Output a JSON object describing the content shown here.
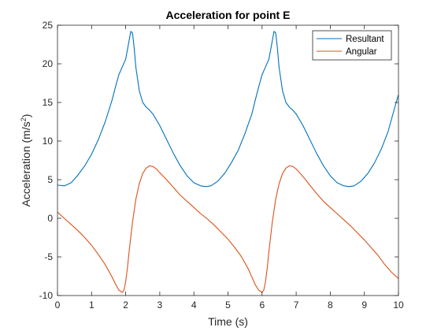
{
  "chart_data": {
    "type": "line",
    "title": "Acceleration for point E",
    "xlabel": "Time (s)",
    "ylabel_base": "Acceleration (m/s",
    "ylabel_sup": "2",
    "ylabel_end": ")",
    "xlim": [
      0,
      10
    ],
    "ylim": [
      -10,
      25
    ],
    "xticks": [
      0,
      1,
      2,
      3,
      4,
      5,
      6,
      7,
      8,
      9,
      10
    ],
    "yticks": [
      -10,
      -5,
      0,
      5,
      10,
      15,
      20,
      25
    ],
    "grid": false,
    "legend_position": "top-right",
    "series": [
      {
        "name": "Resultant",
        "color": "#0072BD",
        "x": [
          0,
          0.2,
          0.4,
          0.6,
          0.8,
          1.0,
          1.2,
          1.4,
          1.6,
          1.7,
          1.8,
          1.9,
          2.0,
          2.1,
          2.15,
          2.2,
          2.25,
          2.3,
          2.4,
          2.5,
          2.6,
          2.7,
          2.8,
          3.0,
          3.2,
          3.4,
          3.6,
          3.8,
          4.0,
          4.2,
          4.35,
          4.5,
          4.7,
          4.9,
          5.1,
          5.3,
          5.5,
          5.7,
          5.8,
          5.9,
          6.0,
          6.1,
          6.2,
          6.3,
          6.35,
          6.4,
          6.45,
          6.5,
          6.6,
          6.7,
          6.8,
          6.9,
          7.0,
          7.2,
          7.4,
          7.6,
          7.8,
          8.0,
          8.2,
          8.4,
          8.55,
          8.7,
          8.9,
          9.1,
          9.3,
          9.5,
          9.7,
          9.9,
          10.0
        ],
        "y": [
          4.3,
          4.2,
          4.6,
          5.6,
          6.8,
          8.3,
          10.2,
          12.5,
          15.3,
          17.0,
          18.6,
          19.6,
          20.6,
          23.0,
          24.2,
          24.0,
          22.0,
          19.5,
          16.5,
          15.0,
          14.4,
          14.0,
          13.5,
          12.0,
          10.2,
          8.4,
          6.8,
          5.5,
          4.6,
          4.2,
          4.1,
          4.2,
          4.8,
          5.8,
          7.2,
          8.8,
          11.0,
          13.5,
          15.3,
          17.0,
          18.6,
          19.6,
          20.6,
          23.0,
          24.2,
          24.0,
          22.0,
          19.5,
          16.5,
          15.0,
          14.4,
          14.0,
          13.5,
          12.0,
          10.2,
          8.4,
          6.8,
          5.5,
          4.6,
          4.2,
          4.1,
          4.2,
          4.8,
          5.8,
          7.2,
          9.0,
          11.3,
          14.5,
          16.0
        ]
      },
      {
        "name": "Angular",
        "color": "#D95319",
        "x": [
          0,
          0.2,
          0.4,
          0.6,
          0.8,
          1.0,
          1.2,
          1.4,
          1.6,
          1.7,
          1.8,
          1.9,
          1.95,
          2.0,
          2.05,
          2.1,
          2.2,
          2.3,
          2.4,
          2.5,
          2.6,
          2.7,
          2.8,
          2.9,
          3.0,
          3.2,
          3.4,
          3.6,
          3.8,
          4.0,
          4.2,
          4.4,
          4.6,
          4.8,
          5.0,
          5.2,
          5.4,
          5.6,
          5.8,
          5.9,
          6.0,
          6.05,
          6.1,
          6.15,
          6.2,
          6.3,
          6.4,
          6.5,
          6.6,
          6.7,
          6.8,
          6.9,
          7.0,
          7.1,
          7.2,
          7.4,
          7.6,
          7.8,
          8.0,
          8.2,
          8.4,
          8.6,
          8.8,
          9.0,
          9.2,
          9.4,
          9.6,
          9.8,
          10.0
        ],
        "y": [
          0.8,
          0.0,
          -0.8,
          -1.6,
          -2.5,
          -3.5,
          -4.7,
          -6.0,
          -7.6,
          -8.5,
          -9.3,
          -9.6,
          -9.3,
          -8.2,
          -6.5,
          -4.3,
          -0.5,
          2.5,
          4.5,
          5.8,
          6.5,
          6.8,
          6.7,
          6.4,
          5.9,
          5.0,
          4.0,
          3.0,
          2.2,
          1.4,
          0.6,
          -0.1,
          -0.9,
          -1.8,
          -2.7,
          -3.8,
          -5.0,
          -6.6,
          -8.6,
          -9.3,
          -9.6,
          -9.3,
          -8.2,
          -6.5,
          -4.3,
          -0.5,
          2.5,
          4.5,
          5.8,
          6.5,
          6.8,
          6.7,
          6.4,
          5.9,
          5.4,
          4.3,
          3.2,
          2.2,
          1.4,
          0.6,
          -0.2,
          -1.0,
          -1.9,
          -2.8,
          -3.8,
          -4.8,
          -6.0,
          -7.0,
          -7.8
        ]
      }
    ]
  }
}
